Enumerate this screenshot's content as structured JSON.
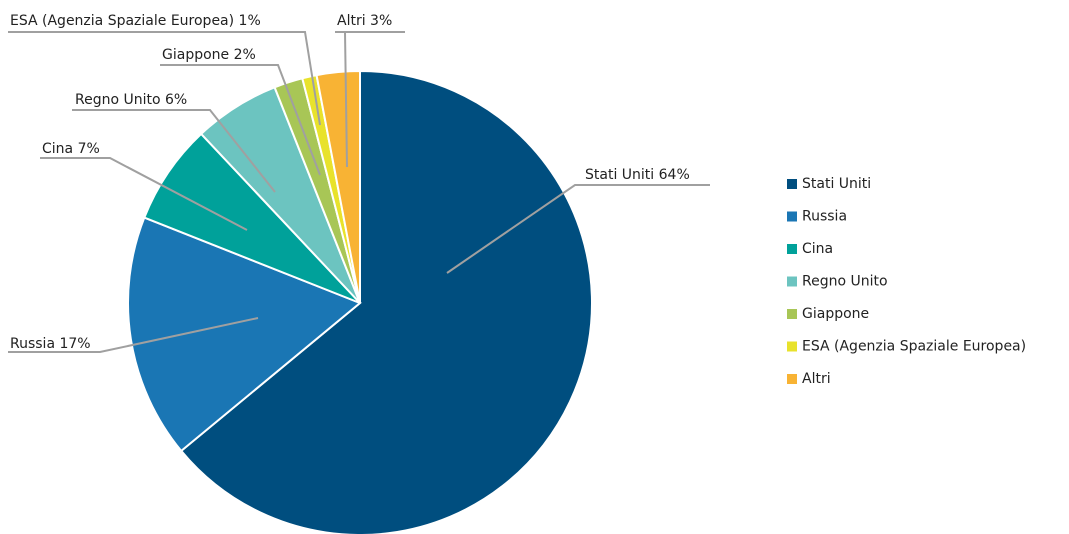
{
  "chart_data": {
    "type": "pie",
    "categories": [
      "Stati Uniti",
      "Russia",
      "Cina",
      "Regno Unito",
      "Giappone",
      "ESA (Agenzia Spaziale Europea)",
      "Altri"
    ],
    "values": [
      64,
      17,
      7,
      6,
      2,
      1,
      3
    ],
    "value_labels": [
      "Stati Uniti 64%",
      "Russia 17%",
      "Cina 7%",
      "Regno Unito 6%",
      "Giappone 2%",
      "ESA (Agenzia Spaziale Europea) 1%",
      "Altri 3%"
    ],
    "colors": [
      "#004e7f",
      "#1a76b4",
      "#00a19a",
      "#6cc4c0",
      "#a8c656",
      "#e8e22c",
      "#f8b334"
    ],
    "legend": "right"
  }
}
